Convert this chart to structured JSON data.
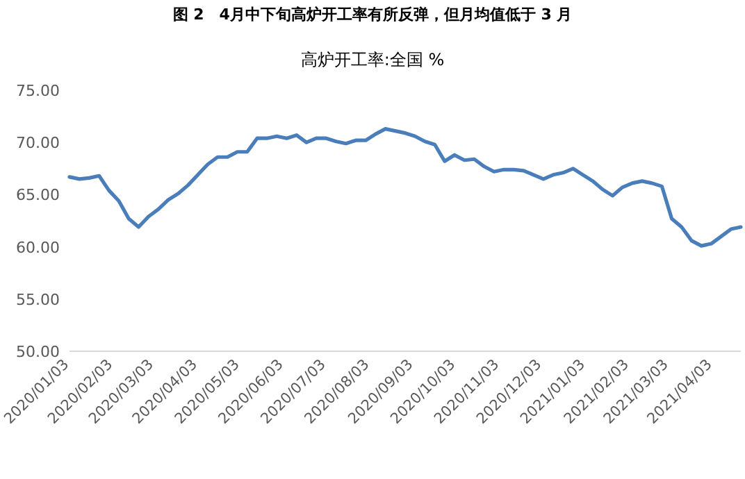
{
  "chart_data": {
    "type": "line",
    "title": "图 2　4月中下旬高炉开工率有所反弹，但月均值低于 3 月",
    "subtitle": "高炉开工率:全国 %",
    "x": [
      "2020-01-03",
      "2020-01-10",
      "2020-01-17",
      "2020-01-24",
      "2020-01-31",
      "2020-02-07",
      "2020-02-14",
      "2020-02-21",
      "2020-02-28",
      "2020-03-06",
      "2020-03-13",
      "2020-03-20",
      "2020-03-27",
      "2020-04-03",
      "2020-04-10",
      "2020-04-17",
      "2020-04-24",
      "2020-05-01",
      "2020-05-08",
      "2020-05-15",
      "2020-05-22",
      "2020-05-29",
      "2020-06-05",
      "2020-06-12",
      "2020-06-19",
      "2020-06-26",
      "2020-07-03",
      "2020-07-10",
      "2020-07-17",
      "2020-07-24",
      "2020-07-31",
      "2020-08-07",
      "2020-08-14",
      "2020-08-21",
      "2020-08-28",
      "2020-09-04",
      "2020-09-11",
      "2020-09-18",
      "2020-09-25",
      "2020-10-02",
      "2020-10-09",
      "2020-10-16",
      "2020-10-23",
      "2020-10-30",
      "2020-11-06",
      "2020-11-13",
      "2020-11-20",
      "2020-11-27",
      "2020-12-04",
      "2020-12-11",
      "2020-12-18",
      "2020-12-25",
      "2021-01-01",
      "2021-01-08",
      "2021-01-15",
      "2021-01-22",
      "2021-01-29",
      "2021-02-05",
      "2021-02-12",
      "2021-02-19",
      "2021-02-26",
      "2021-03-05",
      "2021-03-12",
      "2021-03-19",
      "2021-03-26",
      "2021-04-02",
      "2021-04-09",
      "2021-04-16",
      "2021-04-23"
    ],
    "series": [
      {
        "color": "#4a7ebb",
        "values": [
          66.7,
          66.5,
          66.6,
          66.8,
          65.4,
          64.4,
          62.7,
          61.9,
          62.9,
          63.6,
          64.5,
          65.1,
          65.9,
          66.9,
          67.9,
          68.6,
          68.6,
          69.1,
          69.1,
          70.4,
          70.4,
          70.6,
          70.4,
          70.7,
          70.0,
          70.4,
          70.4,
          70.1,
          69.9,
          70.2,
          70.2,
          70.8,
          71.3,
          71.1,
          70.9,
          70.6,
          70.1,
          69.8,
          68.2,
          68.8,
          68.3,
          68.4,
          67.7,
          67.2,
          67.4,
          67.4,
          67.3,
          66.9,
          66.5,
          66.9,
          67.1,
          67.5,
          66.9,
          66.3,
          65.5,
          64.9,
          65.7,
          66.1,
          66.3,
          66.1,
          65.8,
          62.7,
          61.9,
          60.6,
          60.1,
          60.3,
          61.0,
          61.7,
          61.9
        ]
      }
    ],
    "xlim": [
      "2020-01-03",
      "2021-04-23"
    ],
    "xticks": [
      {
        "value": "2020-01-03",
        "label": "2020/01/03"
      },
      {
        "value": "2020-02-03",
        "label": "2020/02/03"
      },
      {
        "value": "2020-03-03",
        "label": "2020/03/03"
      },
      {
        "value": "2020-04-03",
        "label": "2020/04/03"
      },
      {
        "value": "2020-05-03",
        "label": "2020/05/03"
      },
      {
        "value": "2020-06-03",
        "label": "2020/06/03"
      },
      {
        "value": "2020-07-03",
        "label": "2020/07/03"
      },
      {
        "value": "2020-08-03",
        "label": "2020/08/03"
      },
      {
        "value": "2020-09-03",
        "label": "2020/09/03"
      },
      {
        "value": "2020-10-03",
        "label": "2020/10/03"
      },
      {
        "value": "2020-11-03",
        "label": "2020/11/03"
      },
      {
        "value": "2020-12-03",
        "label": "2020/12/03"
      },
      {
        "value": "2021-01-03",
        "label": "2021/01/03"
      },
      {
        "value": "2021-02-03",
        "label": "2021/02/03"
      },
      {
        "value": "2021-03-03",
        "label": "2021/03/03"
      },
      {
        "value": "2021-04-03",
        "label": "2021/04/03"
      }
    ],
    "ylim": [
      50,
      75
    ],
    "yticks": [
      {
        "value": 50,
        "label": "50.00"
      },
      {
        "value": 55,
        "label": "55.00"
      },
      {
        "value": 60,
        "label": "60.00"
      },
      {
        "value": 65,
        "label": "65.00"
      },
      {
        "value": 70,
        "label": "70.00"
      },
      {
        "value": 75,
        "label": "75.00"
      }
    ]
  }
}
